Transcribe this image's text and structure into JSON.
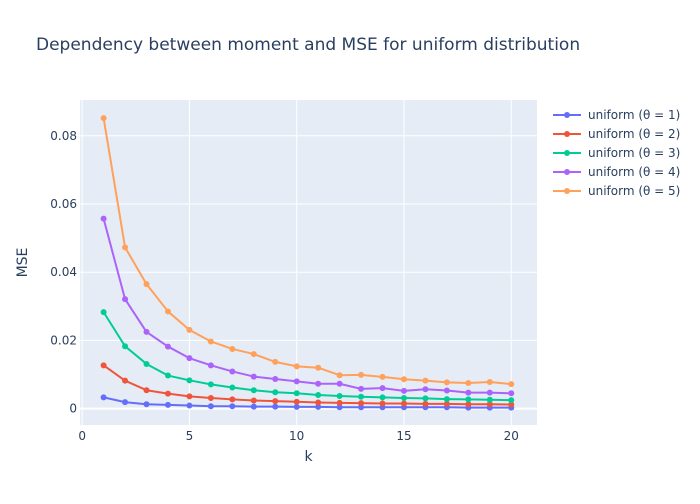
{
  "chart_data": {
    "type": "line",
    "title": "Dependency between moment and MSE for uniform distribution",
    "xlabel": "k",
    "ylabel": "MSE",
    "xlim": [
      -0.1,
      21.2
    ],
    "ylim": [
      -0.0048,
      0.0905
    ],
    "xticks": [
      0,
      5,
      10,
      15,
      20
    ],
    "xtick_labels": [
      "0",
      "5",
      "10",
      "15",
      "20"
    ],
    "yticks": [
      0,
      0.02,
      0.04,
      0.06,
      0.08
    ],
    "ytick_labels": [
      "0",
      "0.02",
      "0.04",
      "0.06",
      "0.08"
    ],
    "grid": true,
    "legend_position": "right",
    "plot_background": "#e5ecf6",
    "x": [
      1,
      2,
      3,
      4,
      5,
      6,
      7,
      8,
      9,
      10,
      11,
      12,
      13,
      14,
      15,
      16,
      17,
      18,
      19,
      20
    ],
    "series": [
      {
        "name": "uniform (θ = 1)",
        "color": "#636efa",
        "values": [
          0.0033,
          0.0019,
          0.0013,
          0.0011,
          0.0009,
          0.0007,
          0.0007,
          0.0006,
          0.0006,
          0.0005,
          0.0005,
          0.0004,
          0.0004,
          0.0004,
          0.0004,
          0.0004,
          0.0004,
          0.0003,
          0.0003,
          0.0003
        ]
      },
      {
        "name": "uniform (θ = 2)",
        "color": "#ef553b",
        "values": [
          0.0127,
          0.0082,
          0.0054,
          0.0044,
          0.0036,
          0.0031,
          0.0027,
          0.0024,
          0.0022,
          0.002,
          0.0018,
          0.0017,
          0.0016,
          0.0015,
          0.0015,
          0.0014,
          0.0014,
          0.0013,
          0.0013,
          0.0012
        ]
      },
      {
        "name": "uniform (θ = 3)",
        "color": "#00cc96",
        "values": [
          0.0283,
          0.0183,
          0.0131,
          0.0097,
          0.0083,
          0.0071,
          0.0062,
          0.0054,
          0.0048,
          0.0045,
          0.004,
          0.0037,
          0.0035,
          0.0033,
          0.0031,
          0.003,
          0.0028,
          0.0027,
          0.0026,
          0.0025
        ]
      },
      {
        "name": "uniform (θ = 4)",
        "color": "#ab63fa",
        "values": [
          0.0557,
          0.0321,
          0.0225,
          0.0182,
          0.0148,
          0.0127,
          0.0109,
          0.0094,
          0.0087,
          0.008,
          0.0073,
          0.0073,
          0.0058,
          0.006,
          0.0052,
          0.0057,
          0.0053,
          0.0047,
          0.0047,
          0.0045
        ]
      },
      {
        "name": "uniform (θ = 5)",
        "color": "#ffa15a",
        "values": [
          0.0852,
          0.0473,
          0.0365,
          0.0285,
          0.0231,
          0.0197,
          0.0175,
          0.016,
          0.0137,
          0.0124,
          0.012,
          0.0098,
          0.0099,
          0.0093,
          0.0086,
          0.0082,
          0.0077,
          0.0075,
          0.0078,
          0.0072
        ]
      }
    ]
  }
}
